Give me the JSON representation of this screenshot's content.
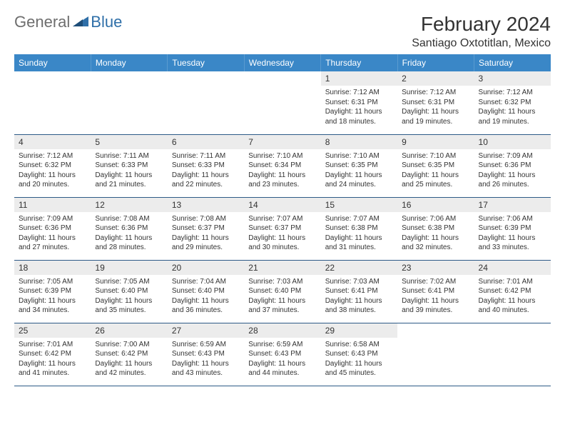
{
  "logo": {
    "part1": "General",
    "part2": "Blue"
  },
  "title": "February 2024",
  "location": "Santiago Oxtotitlan, Mexico",
  "colors": {
    "header_bg": "#3a87c7",
    "header_text": "#ffffff",
    "daynum_bg": "#ececec",
    "row_border": "#2d5a87",
    "logo_gray": "#6e6e6e",
    "logo_blue": "#2f6fa8"
  },
  "weekdays": [
    "Sunday",
    "Monday",
    "Tuesday",
    "Wednesday",
    "Thursday",
    "Friday",
    "Saturday"
  ],
  "grid": [
    [
      null,
      null,
      null,
      null,
      {
        "n": "1",
        "sr": "7:12 AM",
        "ss": "6:31 PM",
        "dl": "11 hours and 18 minutes."
      },
      {
        "n": "2",
        "sr": "7:12 AM",
        "ss": "6:31 PM",
        "dl": "11 hours and 19 minutes."
      },
      {
        "n": "3",
        "sr": "7:12 AM",
        "ss": "6:32 PM",
        "dl": "11 hours and 19 minutes."
      }
    ],
    [
      {
        "n": "4",
        "sr": "7:12 AM",
        "ss": "6:32 PM",
        "dl": "11 hours and 20 minutes."
      },
      {
        "n": "5",
        "sr": "7:11 AM",
        "ss": "6:33 PM",
        "dl": "11 hours and 21 minutes."
      },
      {
        "n": "6",
        "sr": "7:11 AM",
        "ss": "6:33 PM",
        "dl": "11 hours and 22 minutes."
      },
      {
        "n": "7",
        "sr": "7:10 AM",
        "ss": "6:34 PM",
        "dl": "11 hours and 23 minutes."
      },
      {
        "n": "8",
        "sr": "7:10 AM",
        "ss": "6:35 PM",
        "dl": "11 hours and 24 minutes."
      },
      {
        "n": "9",
        "sr": "7:10 AM",
        "ss": "6:35 PM",
        "dl": "11 hours and 25 minutes."
      },
      {
        "n": "10",
        "sr": "7:09 AM",
        "ss": "6:36 PM",
        "dl": "11 hours and 26 minutes."
      }
    ],
    [
      {
        "n": "11",
        "sr": "7:09 AM",
        "ss": "6:36 PM",
        "dl": "11 hours and 27 minutes."
      },
      {
        "n": "12",
        "sr": "7:08 AM",
        "ss": "6:36 PM",
        "dl": "11 hours and 28 minutes."
      },
      {
        "n": "13",
        "sr": "7:08 AM",
        "ss": "6:37 PM",
        "dl": "11 hours and 29 minutes."
      },
      {
        "n": "14",
        "sr": "7:07 AM",
        "ss": "6:37 PM",
        "dl": "11 hours and 30 minutes."
      },
      {
        "n": "15",
        "sr": "7:07 AM",
        "ss": "6:38 PM",
        "dl": "11 hours and 31 minutes."
      },
      {
        "n": "16",
        "sr": "7:06 AM",
        "ss": "6:38 PM",
        "dl": "11 hours and 32 minutes."
      },
      {
        "n": "17",
        "sr": "7:06 AM",
        "ss": "6:39 PM",
        "dl": "11 hours and 33 minutes."
      }
    ],
    [
      {
        "n": "18",
        "sr": "7:05 AM",
        "ss": "6:39 PM",
        "dl": "11 hours and 34 minutes."
      },
      {
        "n": "19",
        "sr": "7:05 AM",
        "ss": "6:40 PM",
        "dl": "11 hours and 35 minutes."
      },
      {
        "n": "20",
        "sr": "7:04 AM",
        "ss": "6:40 PM",
        "dl": "11 hours and 36 minutes."
      },
      {
        "n": "21",
        "sr": "7:03 AM",
        "ss": "6:40 PM",
        "dl": "11 hours and 37 minutes."
      },
      {
        "n": "22",
        "sr": "7:03 AM",
        "ss": "6:41 PM",
        "dl": "11 hours and 38 minutes."
      },
      {
        "n": "23",
        "sr": "7:02 AM",
        "ss": "6:41 PM",
        "dl": "11 hours and 39 minutes."
      },
      {
        "n": "24",
        "sr": "7:01 AM",
        "ss": "6:42 PM",
        "dl": "11 hours and 40 minutes."
      }
    ],
    [
      {
        "n": "25",
        "sr": "7:01 AM",
        "ss": "6:42 PM",
        "dl": "11 hours and 41 minutes."
      },
      {
        "n": "26",
        "sr": "7:00 AM",
        "ss": "6:42 PM",
        "dl": "11 hours and 42 minutes."
      },
      {
        "n": "27",
        "sr": "6:59 AM",
        "ss": "6:43 PM",
        "dl": "11 hours and 43 minutes."
      },
      {
        "n": "28",
        "sr": "6:59 AM",
        "ss": "6:43 PM",
        "dl": "11 hours and 44 minutes."
      },
      {
        "n": "29",
        "sr": "6:58 AM",
        "ss": "6:43 PM",
        "dl": "11 hours and 45 minutes."
      },
      null,
      null
    ]
  ],
  "labels": {
    "sunrise": "Sunrise:",
    "sunset": "Sunset:",
    "daylight": "Daylight:"
  }
}
